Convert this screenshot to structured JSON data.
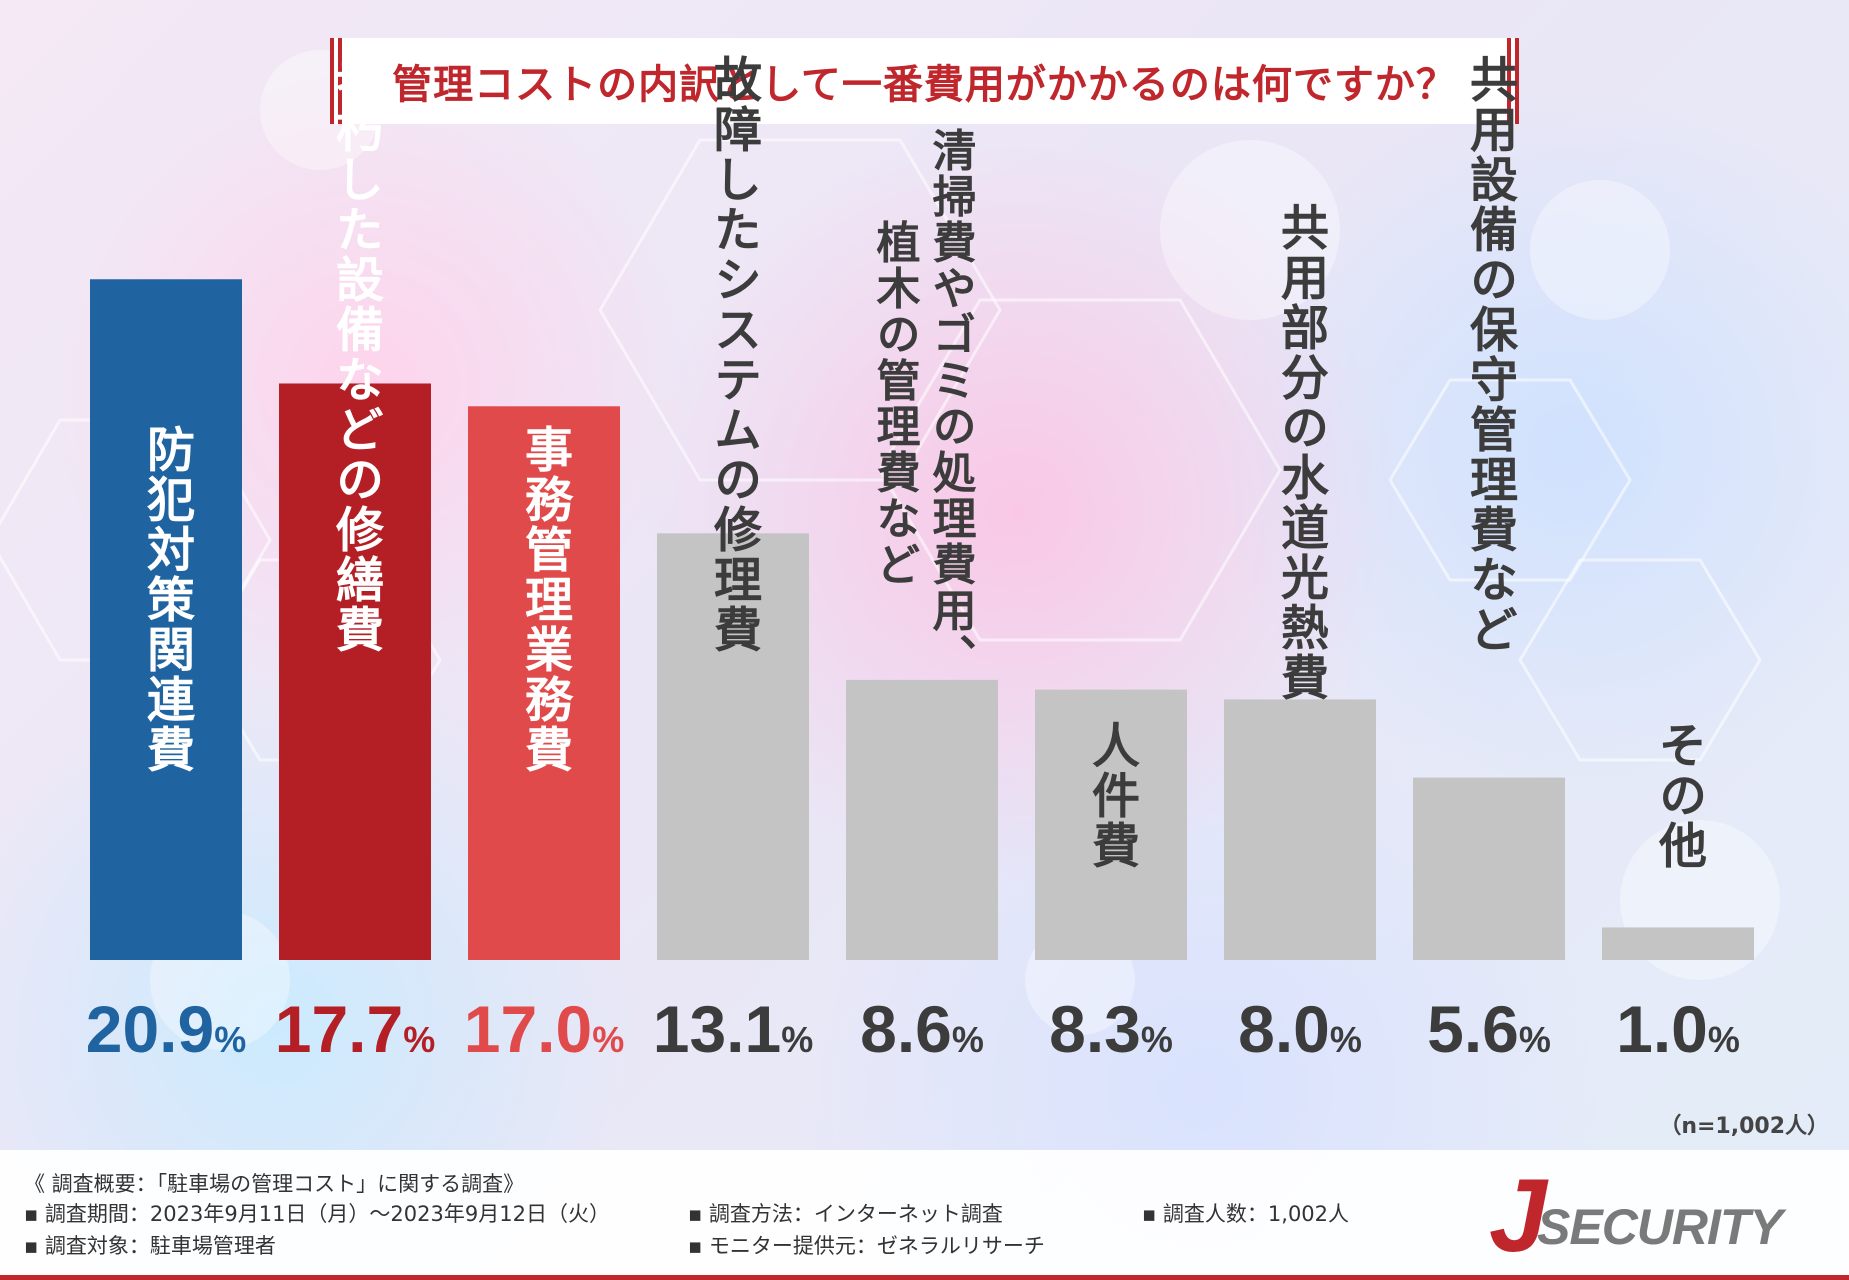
{
  "title": "管理コストの内訳として一番費用がかかるのは何ですか？",
  "sample_size": "（n=1,002人）",
  "colors": {
    "blue": "#1f64a0",
    "dark_red": "#b31f24",
    "red": "#e04a4a",
    "gray": "#c4c4c4",
    "title_red": "#c0272d"
  },
  "chart_data": {
    "type": "bar",
    "unit": "%",
    "categories": [
      "防犯対策関連費",
      "老朽した設備などの修繕費",
      "事務管理業務費",
      "故障したシステムの修理費",
      "清掃費やゴミの処理費用、植木の管理費など",
      "人件費",
      "共用部分の水道光熱費",
      "共用設備の保守管理費など",
      "その他"
    ],
    "values": [
      20.9,
      17.7,
      17.0,
      13.1,
      8.6,
      8.3,
      8.0,
      5.6,
      1.0
    ],
    "value_labels": [
      "20.9%",
      "17.7%",
      "17.0%",
      "13.1%",
      "8.6%",
      "8.3%",
      "8.0%",
      "5.6%",
      "1.0%"
    ],
    "bar_colors": [
      "#1f64a0",
      "#b31f24",
      "#e04a4a",
      "#c4c4c4",
      "#c4c4c4",
      "#c4c4c4",
      "#c4c4c4",
      "#c4c4c4",
      "#c4c4c4"
    ],
    "label_lines": [
      [
        "防犯対策関連費"
      ],
      [
        "老朽した設備などの修繕費"
      ],
      [
        "事務管理業務費"
      ],
      [
        "故障したシステムの修理費"
      ],
      [
        "清掃費やゴミの処理費用、",
        "植木の管理費など"
      ],
      [
        "人件費"
      ],
      [
        "共用部分の水道光熱費"
      ],
      [
        "共用設備の保守管理費など"
      ],
      [
        "その他"
      ]
    ],
    "ylim": [
      0,
      21
    ]
  },
  "footer": {
    "overview": "《 調査概要：「駐車場の管理コスト」に関する調査》",
    "period": "▪ 調査期間：2023年9月11日（月）～2023年9月12日（火）",
    "target": "▪ 調査対象：駐車場管理者",
    "method": "▪ 調査方法：インターネット調査",
    "provider": "▪ モニター提供元：ゼネラルリサーチ",
    "count": "▪ 調査人数：1,002人"
  },
  "logo": {
    "mark": "J",
    "text": "SECURITY"
  }
}
